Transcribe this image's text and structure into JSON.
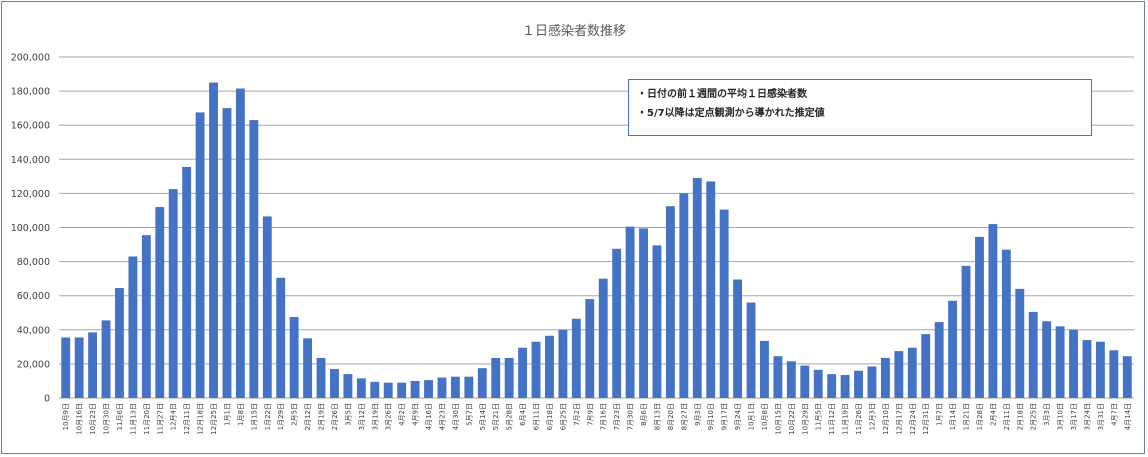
{
  "chart_data": {
    "type": "bar",
    "title": "１日感染者数推移",
    "xlabel": "",
    "ylabel": "",
    "ylim": [
      0,
      200000
    ],
    "yticks": [
      "0",
      "20,000",
      "40,000",
      "60,000",
      "80,000",
      "100,000",
      "120,000",
      "140,000",
      "160,000",
      "180,000",
      "200,000"
    ],
    "grid": true,
    "bar_color": "#4472c4",
    "categories": [
      "10月9日",
      "10月16日",
      "10月23日",
      "10月30日",
      "11月6日",
      "11月13日",
      "11月20日",
      "11月27日",
      "12月4日",
      "12月11日",
      "12月18日",
      "12月25日",
      "1月1日",
      "1月8日",
      "1月15日",
      "1月22日",
      "1月29日",
      "2月5日",
      "2月12日",
      "2月19日",
      "2月26日",
      "3月5日",
      "3月12日",
      "3月19日",
      "3月26日",
      "4月2日",
      "4月9日",
      "4月16日",
      "4月23日",
      "4月30日",
      "5月7日",
      "5月14日",
      "5月21日",
      "5月28日",
      "6月4日",
      "6月11日",
      "6月18日",
      "6月25日",
      "7月2日",
      "7月9日",
      "7月16日",
      "7月23日",
      "7月30日",
      "8月6日",
      "8月13日",
      "8月20日",
      "8月27日",
      "9月3日",
      "9月10日",
      "9月17日",
      "9月24日",
      "10月1日",
      "10月8日",
      "10月15日",
      "10月22日",
      "10月29日",
      "11月5日",
      "11月12日",
      "11月19日",
      "11月26日",
      "12月3日",
      "12月10日",
      "12月17日",
      "12月24日",
      "12月31日",
      "1月7日",
      "1月14日",
      "1月21日",
      "1月28日",
      "2月4日",
      "2月11日",
      "2月18日",
      "2月25日",
      "3月3日",
      "3月10日",
      "3月17日",
      "3月24日",
      "3月31日",
      "4月7日",
      "4月14日"
    ],
    "values": [
      35500,
      35500,
      38500,
      45500,
      64500,
      83000,
      95500,
      112000,
      122500,
      135500,
      167500,
      185000,
      170000,
      181500,
      163000,
      106500,
      70500,
      47500,
      35000,
      23500,
      17000,
      14000,
      11500,
      9500,
      9000,
      9000,
      10000,
      10500,
      12000,
      12500,
      12500,
      17500,
      23500,
      23500,
      29500,
      33000,
      36500,
      40000,
      46500,
      58000,
      70000,
      87500,
      100500,
      99500,
      89500,
      112500,
      120000,
      129000,
      127000,
      110500,
      69500,
      56000,
      33500,
      24500,
      21500,
      19000,
      16500,
      14000,
      13500,
      16000,
      18500,
      23500,
      27500,
      29500,
      37500,
      44500,
      57000,
      77500,
      94500,
      102000,
      87000,
      64000,
      50500,
      45000,
      42000,
      40000,
      34000,
      33000,
      28000,
      24500
    ]
  },
  "note": {
    "lines": [
      "・日付の前１週間の平均１日感染者数",
      "・5/7以降は定点観測から導かれた推定値"
    ]
  }
}
